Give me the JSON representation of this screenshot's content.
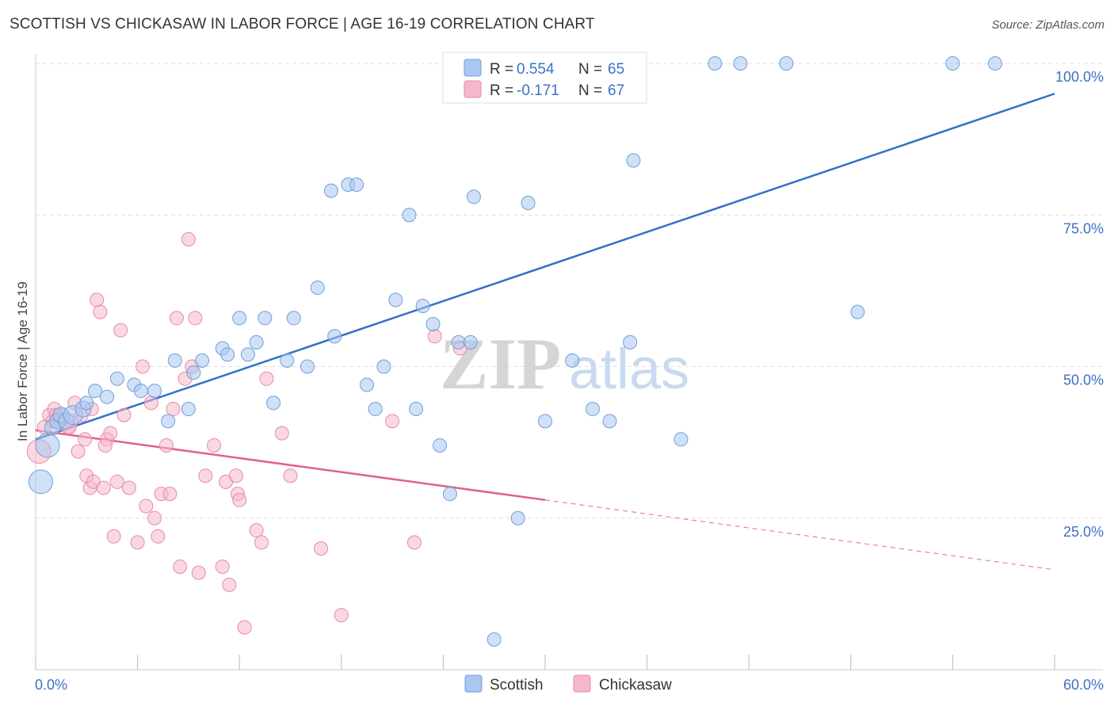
{
  "header": {
    "title": "SCOTTISH VS CHICKASAW IN LABOR FORCE | AGE 16-19 CORRELATION CHART",
    "source": "Source: ZipAtlas.com"
  },
  "watermark": {
    "zip": "ZIP",
    "atlas": "atlas"
  },
  "legend": {
    "rows": [
      {
        "r_label": "R = ",
        "r_value": "0.554",
        "n_label": "N = ",
        "n_value": "65",
        "color": "#a9c7f0"
      },
      {
        "r_label": "R = ",
        "r_value": "-0.171",
        "n_label": "N = ",
        "n_value": "67",
        "color": "#f5b8cb"
      }
    ]
  },
  "bottom_legend": [
    "Scottish",
    "Chickasaw"
  ],
  "chart_data": {
    "type": "scatter",
    "title": "SCOTTISH VS CHICKASAW IN LABOR FORCE | AGE 16-19 CORRELATION CHART",
    "xlabel": "",
    "ylabel": "In Labor Force | Age 16-19",
    "xlim": [
      0,
      60
    ],
    "ylim": [
      0,
      100
    ],
    "x_tick_labels": [
      "0.0%",
      "60.0%"
    ],
    "y_tick_labels": [
      "25.0%",
      "50.0%",
      "75.0%",
      "100.0%"
    ],
    "y_ticks": [
      25,
      50,
      75,
      100
    ],
    "grid": true,
    "legend_position": "top-center",
    "series": [
      {
        "name": "Scottish",
        "color": "#a9c7f0",
        "edge_color": "#6f9fdc",
        "line_color": "#3371c8",
        "trend": {
          "x": [
            0,
            60
          ],
          "y": [
            38.0,
            95.0
          ],
          "style": "solid"
        },
        "points": [
          [
            0.3,
            31,
            3
          ],
          [
            0.7,
            37,
            3
          ],
          [
            1.0,
            40,
            2
          ],
          [
            1.3,
            41,
            2
          ],
          [
            1.5,
            42,
            2
          ],
          [
            1.8,
            41,
            2
          ],
          [
            2.2,
            42,
            2.5
          ],
          [
            2.8,
            43,
            2
          ],
          [
            3.0,
            44,
            1
          ],
          [
            3.5,
            46,
            1
          ],
          [
            4.2,
            45,
            1
          ],
          [
            4.8,
            48,
            1
          ],
          [
            5.8,
            47,
            1
          ],
          [
            6.2,
            46,
            1
          ],
          [
            7.0,
            46,
            1
          ],
          [
            7.8,
            41,
            1
          ],
          [
            8.2,
            51,
            1
          ],
          [
            9.0,
            43,
            1
          ],
          [
            9.3,
            49,
            1
          ],
          [
            9.8,
            51,
            1
          ],
          [
            11.0,
            53,
            1
          ],
          [
            11.3,
            52,
            1
          ],
          [
            12.0,
            58,
            1
          ],
          [
            12.5,
            52,
            1
          ],
          [
            13.0,
            54,
            1
          ],
          [
            13.5,
            58,
            1
          ],
          [
            14.0,
            44,
            1
          ],
          [
            14.8,
            51,
            1
          ],
          [
            15.2,
            58,
            1
          ],
          [
            16.0,
            50,
            1
          ],
          [
            16.6,
            63,
            1
          ],
          [
            17.4,
            79,
            1
          ],
          [
            17.6,
            55,
            1
          ],
          [
            18.4,
            80,
            1
          ],
          [
            18.9,
            80,
            1
          ],
          [
            19.5,
            47,
            1
          ],
          [
            20.0,
            43,
            1
          ],
          [
            20.5,
            50,
            1
          ],
          [
            21.2,
            61,
            1
          ],
          [
            22.0,
            75,
            1
          ],
          [
            22.4,
            43,
            1
          ],
          [
            22.8,
            60,
            1
          ],
          [
            23.4,
            57,
            1
          ],
          [
            23.8,
            37,
            1
          ],
          [
            24.4,
            29,
            1
          ],
          [
            24.9,
            54,
            1
          ],
          [
            25.6,
            54,
            1
          ],
          [
            25.8,
            78,
            1
          ],
          [
            24.8,
            100,
            1
          ],
          [
            28.4,
            25,
            1
          ],
          [
            27.0,
            5,
            1
          ],
          [
            29.0,
            77,
            1
          ],
          [
            30.0,
            41,
            1
          ],
          [
            31.6,
            51,
            1
          ],
          [
            32.8,
            43,
            1
          ],
          [
            33.8,
            41,
            1
          ],
          [
            35.0,
            54,
            1
          ],
          [
            35.2,
            84,
            1
          ],
          [
            38.0,
            38,
            1
          ],
          [
            40.0,
            100,
            1
          ],
          [
            41.5,
            100,
            1
          ],
          [
            44.2,
            100,
            1
          ],
          [
            48.4,
            59,
            1
          ],
          [
            54.0,
            100,
            1
          ],
          [
            56.5,
            100,
            1
          ]
        ]
      },
      {
        "name": "Chickasaw",
        "color": "#f5b8cb",
        "edge_color": "#e78aa8",
        "line_color": "#e0628f",
        "trend": {
          "x": [
            0,
            30
          ],
          "y": [
            39.5,
            28.0
          ],
          "style": "solid",
          "extended_to": [
            60,
            16.5
          ],
          "extended_style": "dashed"
        },
        "points": [
          [
            0.2,
            36,
            3
          ],
          [
            0.5,
            40,
            1
          ],
          [
            0.8,
            42,
            1
          ],
          [
            1.1,
            43,
            1
          ],
          [
            1.4,
            41,
            1
          ],
          [
            1.6,
            42,
            1
          ],
          [
            1.9,
            40,
            1
          ],
          [
            2.1,
            41,
            1
          ],
          [
            2.3,
            44,
            1
          ],
          [
            2.5,
            36,
            1
          ],
          [
            2.7,
            42,
            1
          ],
          [
            2.9,
            38,
            1
          ],
          [
            3.0,
            32,
            1
          ],
          [
            3.2,
            30,
            1
          ],
          [
            3.4,
            31,
            1
          ],
          [
            3.6,
            61,
            1
          ],
          [
            3.8,
            59,
            1
          ],
          [
            4.0,
            30,
            1
          ],
          [
            4.2,
            38,
            1
          ],
          [
            4.4,
            39,
            1
          ],
          [
            4.6,
            22,
            1
          ],
          [
            4.8,
            31,
            1
          ],
          [
            5.0,
            56,
            1
          ],
          [
            5.2,
            42,
            1
          ],
          [
            5.5,
            30,
            1
          ],
          [
            6.0,
            21,
            1
          ],
          [
            6.3,
            50,
            1
          ],
          [
            6.5,
            27,
            1
          ],
          [
            6.8,
            44,
            1
          ],
          [
            7.0,
            25,
            1
          ],
          [
            7.2,
            22,
            1
          ],
          [
            7.4,
            29,
            1
          ],
          [
            7.7,
            37,
            1
          ],
          [
            7.9,
            29,
            1
          ],
          [
            8.1,
            43,
            1
          ],
          [
            8.3,
            58,
            1
          ],
          [
            8.5,
            17,
            1
          ],
          [
            8.8,
            48,
            1
          ],
          [
            9.0,
            71,
            1
          ],
          [
            9.2,
            50,
            1
          ],
          [
            9.4,
            58,
            1
          ],
          [
            9.6,
            16,
            1
          ],
          [
            10.0,
            32,
            1
          ],
          [
            10.5,
            37,
            1
          ],
          [
            11.0,
            17,
            1
          ],
          [
            11.2,
            31,
            1
          ],
          [
            11.4,
            14,
            1
          ],
          [
            11.8,
            32,
            1
          ],
          [
            11.9,
            29,
            1
          ],
          [
            12.0,
            28,
            1
          ],
          [
            12.3,
            7,
            1
          ],
          [
            13.0,
            23,
            1
          ],
          [
            13.3,
            21,
            1
          ],
          [
            13.6,
            48,
            1
          ],
          [
            14.5,
            39,
            1
          ],
          [
            15.0,
            32,
            1
          ],
          [
            16.8,
            20,
            1
          ],
          [
            18.0,
            9,
            1
          ],
          [
            21.0,
            41,
            1
          ],
          [
            22.3,
            21,
            1
          ],
          [
            23.5,
            55,
            1
          ],
          [
            25.0,
            53,
            1
          ],
          [
            1.0,
            41,
            1
          ],
          [
            1.2,
            42,
            1
          ],
          [
            2.0,
            40,
            1
          ],
          [
            3.3,
            43,
            1
          ],
          [
            4.1,
            37,
            1
          ]
        ]
      }
    ]
  }
}
